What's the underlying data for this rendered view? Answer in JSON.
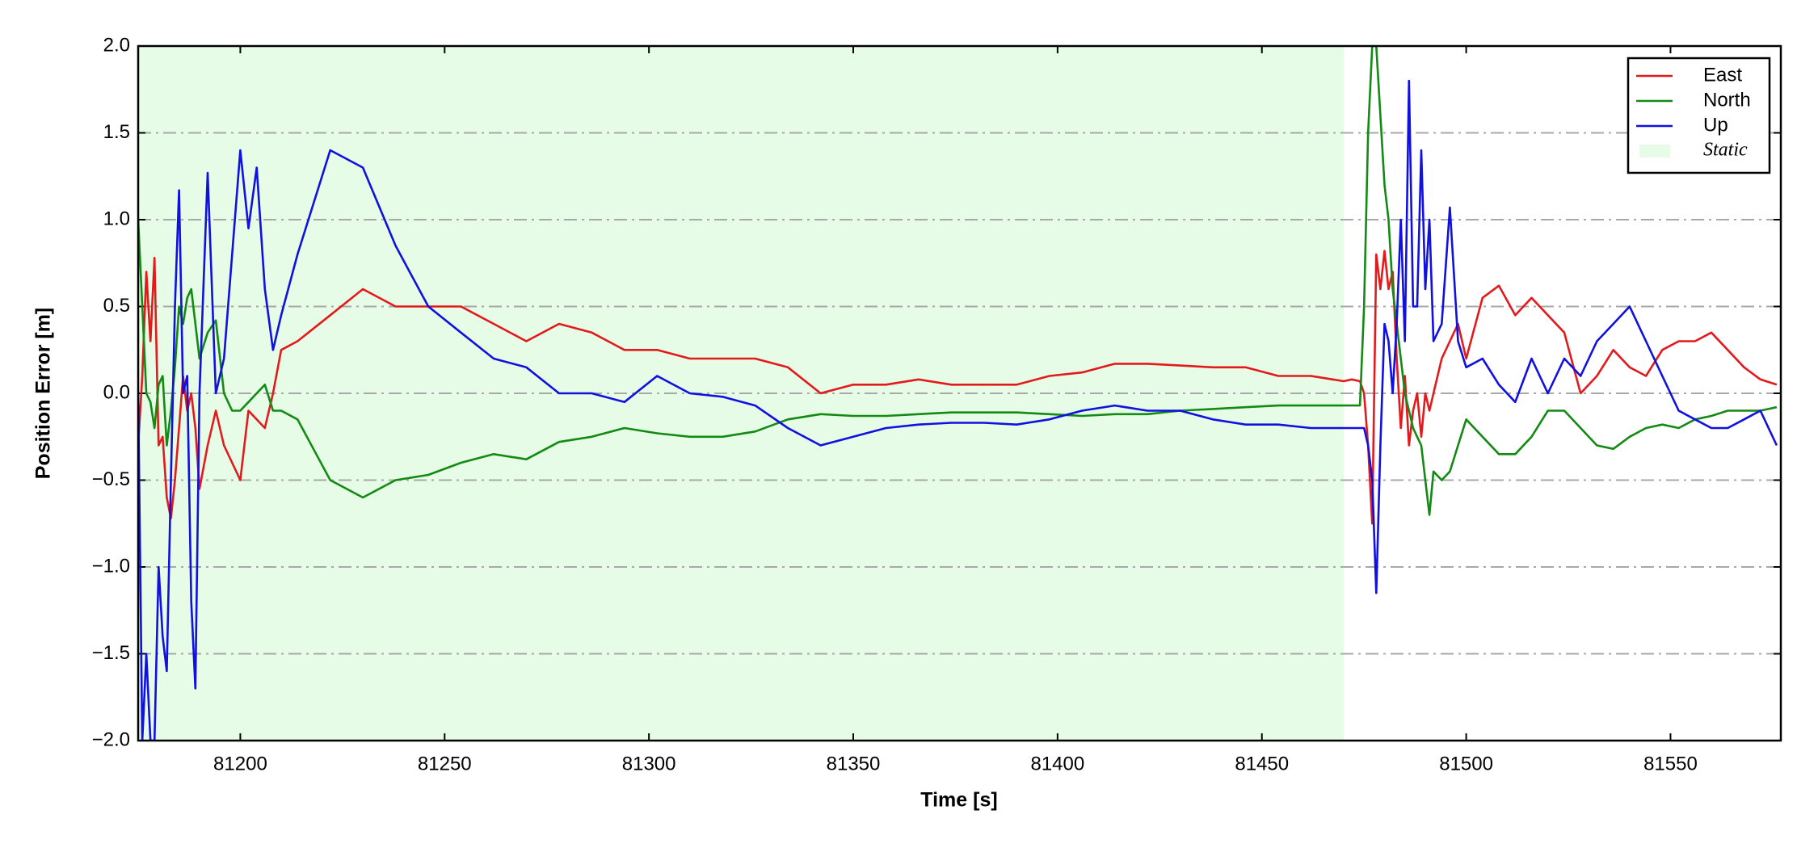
{
  "chart_data": {
    "type": "line",
    "xlabel": "Time [s]",
    "ylabel": "Position Error [m]",
    "xlim": [
      81175,
      81577
    ],
    "ylim": [
      -2,
      2
    ],
    "xticks": [
      81200,
      81250,
      81300,
      81350,
      81400,
      81450,
      81500,
      81550
    ],
    "yticks": [
      {
        "value": -2,
        "label": "−2.0"
      },
      {
        "value": -1.5,
        "label": "−1.5"
      },
      {
        "value": -1,
        "label": "−1.0"
      },
      {
        "value": -0.5,
        "label": "−0.5"
      },
      {
        "value": 0,
        "label": "0.0"
      },
      {
        "value": 0.5,
        "label": "0.5"
      },
      {
        "value": 1,
        "label": "1.0"
      },
      {
        "value": 1.5,
        "label": "1.5"
      },
      {
        "value": 2,
        "label": "2.0"
      }
    ],
    "grid": true,
    "legend": "upper right",
    "static": {
      "label": "Static",
      "range": [
        81175,
        81470
      ],
      "color": "#e6fce6"
    },
    "x": [
      81175,
      81176,
      81177,
      81178,
      81179,
      81180,
      81181,
      81182,
      81183,
      81184,
      81185,
      81186,
      81187,
      81188,
      81189,
      81190,
      81192,
      81194,
      81196,
      81198,
      81200,
      81202,
      81204,
      81206,
      81208,
      81210,
      81214,
      81222,
      81230,
      81238,
      81246,
      81254,
      81262,
      81270,
      81278,
      81286,
      81294,
      81302,
      81310,
      81318,
      81326,
      81334,
      81342,
      81350,
      81358,
      81366,
      81374,
      81382,
      81390,
      81398,
      81406,
      81414,
      81422,
      81430,
      81438,
      81446,
      81454,
      81462,
      81470,
      81472,
      81474,
      81475,
      81476,
      81477,
      81478,
      81479,
      81480,
      81481,
      81482,
      81483,
      81484,
      81485,
      81486,
      81487,
      81488,
      81489,
      81490,
      81491,
      81492,
      81494,
      81496,
      81498,
      81500,
      81504,
      81508,
      81512,
      81516,
      81520,
      81524,
      81528,
      81532,
      81536,
      81540,
      81544,
      81548,
      81552,
      81556,
      81560,
      81564,
      81568,
      81572,
      81576
    ],
    "series": [
      {
        "name": "East",
        "color": "#e31a1c",
        "values": [
          -0.3,
          0.1,
          0.7,
          0.3,
          0.78,
          -0.3,
          -0.25,
          -0.6,
          -0.72,
          -0.5,
          -0.2,
          0.1,
          -0.1,
          0.0,
          -0.2,
          -0.55,
          -0.3,
          -0.1,
          -0.3,
          -0.4,
          -0.5,
          -0.1,
          -0.15,
          -0.2,
          0.0,
          0.25,
          0.3,
          0.45,
          0.6,
          0.5,
          0.5,
          0.5,
          0.4,
          0.3,
          0.4,
          0.35,
          0.25,
          0.25,
          0.2,
          0.2,
          0.2,
          0.15,
          0.0,
          0.05,
          0.05,
          0.08,
          0.05,
          0.05,
          0.05,
          0.1,
          0.12,
          0.17,
          0.17,
          0.16,
          0.15,
          0.15,
          0.1,
          0.1,
          0.07,
          0.08,
          0.07,
          0.0,
          -0.3,
          -0.75,
          0.8,
          0.6,
          0.82,
          0.6,
          0.7,
          0.2,
          -0.2,
          0.1,
          -0.3,
          -0.1,
          0.0,
          -0.25,
          0.0,
          -0.1,
          0.0,
          0.2,
          0.3,
          0.4,
          0.2,
          0.55,
          0.62,
          0.45,
          0.55,
          0.45,
          0.35,
          0.0,
          0.1,
          0.25,
          0.15,
          0.1,
          0.25,
          0.3,
          0.3,
          0.35,
          0.25,
          0.15,
          0.08,
          0.05
        ]
      },
      {
        "name": "North",
        "color": "#138a13",
        "values": [
          1.0,
          0.5,
          0.0,
          -0.05,
          -0.2,
          0.05,
          0.1,
          -0.3,
          -0.1,
          0.15,
          0.5,
          0.4,
          0.55,
          0.6,
          0.4,
          0.2,
          0.35,
          0.42,
          0.0,
          -0.1,
          -0.1,
          -0.05,
          0.0,
          0.05,
          -0.1,
          -0.1,
          -0.15,
          -0.5,
          -0.6,
          -0.5,
          -0.47,
          -0.4,
          -0.35,
          -0.38,
          -0.28,
          -0.25,
          -0.2,
          -0.23,
          -0.25,
          -0.25,
          -0.22,
          -0.15,
          -0.12,
          -0.13,
          -0.13,
          -0.12,
          -0.11,
          -0.11,
          -0.11,
          -0.12,
          -0.13,
          -0.12,
          -0.12,
          -0.1,
          -0.09,
          -0.08,
          -0.07,
          -0.07,
          -0.07,
          -0.07,
          -0.07,
          0.5,
          1.5,
          2.0,
          2.0,
          1.6,
          1.2,
          1.0,
          0.6,
          0.4,
          0.2,
          0.0,
          -0.1,
          -0.2,
          -0.25,
          -0.3,
          -0.5,
          -0.7,
          -0.45,
          -0.5,
          -0.45,
          -0.3,
          -0.15,
          -0.25,
          -0.35,
          -0.35,
          -0.25,
          -0.1,
          -0.1,
          -0.2,
          -0.3,
          -0.32,
          -0.25,
          -0.2,
          -0.18,
          -0.2,
          -0.15,
          -0.13,
          -0.1,
          -0.1,
          -0.1,
          -0.08
        ]
      },
      {
        "name": "Up",
        "color": "#1010e0",
        "values": [
          0.0,
          -2.0,
          -1.5,
          -2.0,
          -2.0,
          -1.0,
          -1.4,
          -1.6,
          -0.5,
          0.5,
          1.17,
          0.0,
          0.1,
          -1.2,
          -1.7,
          0.0,
          1.27,
          0.0,
          0.2,
          0.8,
          1.4,
          0.95,
          1.3,
          0.6,
          0.25,
          0.45,
          0.8,
          1.4,
          1.3,
          0.85,
          0.5,
          0.35,
          0.2,
          0.15,
          0.0,
          0.0,
          -0.05,
          0.1,
          0.0,
          -0.02,
          -0.07,
          -0.2,
          -0.3,
          -0.25,
          -0.2,
          -0.18,
          -0.17,
          -0.17,
          -0.18,
          -0.15,
          -0.1,
          -0.07,
          -0.1,
          -0.1,
          -0.15,
          -0.18,
          -0.18,
          -0.2,
          -0.2,
          -0.2,
          -0.2,
          -0.2,
          -0.3,
          -0.5,
          -1.15,
          -0.3,
          0.4,
          0.3,
          0.0,
          0.4,
          1.0,
          0.3,
          1.8,
          0.5,
          0.5,
          1.4,
          0.6,
          1.0,
          0.3,
          0.4,
          1.07,
          0.3,
          0.15,
          0.2,
          0.05,
          -0.05,
          0.2,
          0.0,
          0.2,
          0.1,
          0.3,
          0.4,
          0.5,
          0.3,
          0.1,
          -0.1,
          -0.15,
          -0.2,
          -0.2,
          -0.15,
          -0.1,
          -0.3
        ]
      }
    ]
  }
}
